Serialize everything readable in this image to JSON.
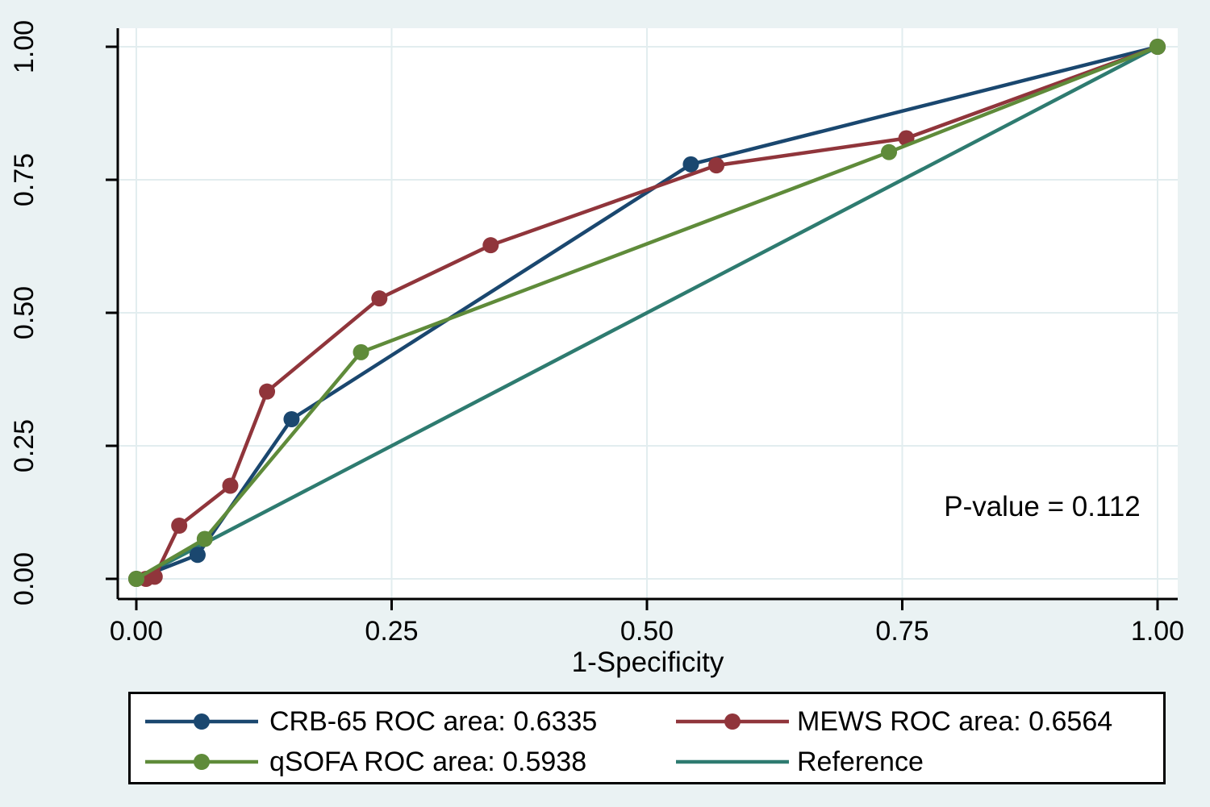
{
  "figure": {
    "background_color": "#eaf2f3",
    "plot_background_color": "#ffffff",
    "gridline_color": "#e2edef",
    "axis_color": "#000000",
    "text_color": "#000000",
    "annotation_text": "P-value = 0.112",
    "x_axis": {
      "title": "1-Specificity",
      "tick_labels": [
        "0.00",
        "0.25",
        "0.50",
        "0.75",
        "1.00"
      ],
      "tick_values": [
        0,
        0.25,
        0.5,
        0.75,
        1
      ]
    },
    "y_axis": {
      "title": "",
      "tick_labels": [
        "0.00",
        "0.25",
        "0.50",
        "0.75",
        "1.00"
      ],
      "tick_values": [
        0,
        0.25,
        0.5,
        0.75,
        1
      ]
    }
  },
  "chart_data": {
    "type": "line",
    "title": "",
    "xlabel": "1-Specificity",
    "ylabel": "",
    "xlim": [
      0,
      1
    ],
    "ylim": [
      0,
      1
    ],
    "grid": true,
    "legend_position": "bottom",
    "annotation": "P-value = 0.112",
    "series": [
      {
        "name": "CRB-65 ROC area: 0.6335",
        "color": "#1a476f",
        "marker": "circle",
        "points": [
          [
            0,
            0
          ],
          [
            0.06,
            0.045
          ],
          [
            0.152,
            0.3
          ],
          [
            0.543,
            0.779
          ],
          [
            1,
            1
          ]
        ]
      },
      {
        "name": "MEWS ROC area: 0.6564",
        "color": "#90353b",
        "marker": "circle",
        "points": [
          [
            0,
            0
          ],
          [
            0.0095,
            0.0
          ],
          [
            0.018,
            0.004
          ],
          [
            0.042,
            0.1
          ],
          [
            0.092,
            0.175
          ],
          [
            0.128,
            0.352
          ],
          [
            0.238,
            0.527
          ],
          [
            0.347,
            0.627
          ],
          [
            0.568,
            0.777
          ],
          [
            0.754,
            0.828
          ],
          [
            1,
            1
          ]
        ]
      },
      {
        "name": "qSOFA ROC area: 0.5938",
        "color": "#5f8b3a",
        "marker": "circle",
        "points": [
          [
            0,
            0
          ],
          [
            0.067,
            0.075
          ],
          [
            0.22,
            0.426
          ],
          [
            0.737,
            0.802
          ],
          [
            1,
            1
          ]
        ]
      },
      {
        "name": "Reference",
        "color": "#2e7b70",
        "marker": "none",
        "points": [
          [
            0,
            0
          ],
          [
            1,
            1
          ]
        ]
      }
    ]
  }
}
